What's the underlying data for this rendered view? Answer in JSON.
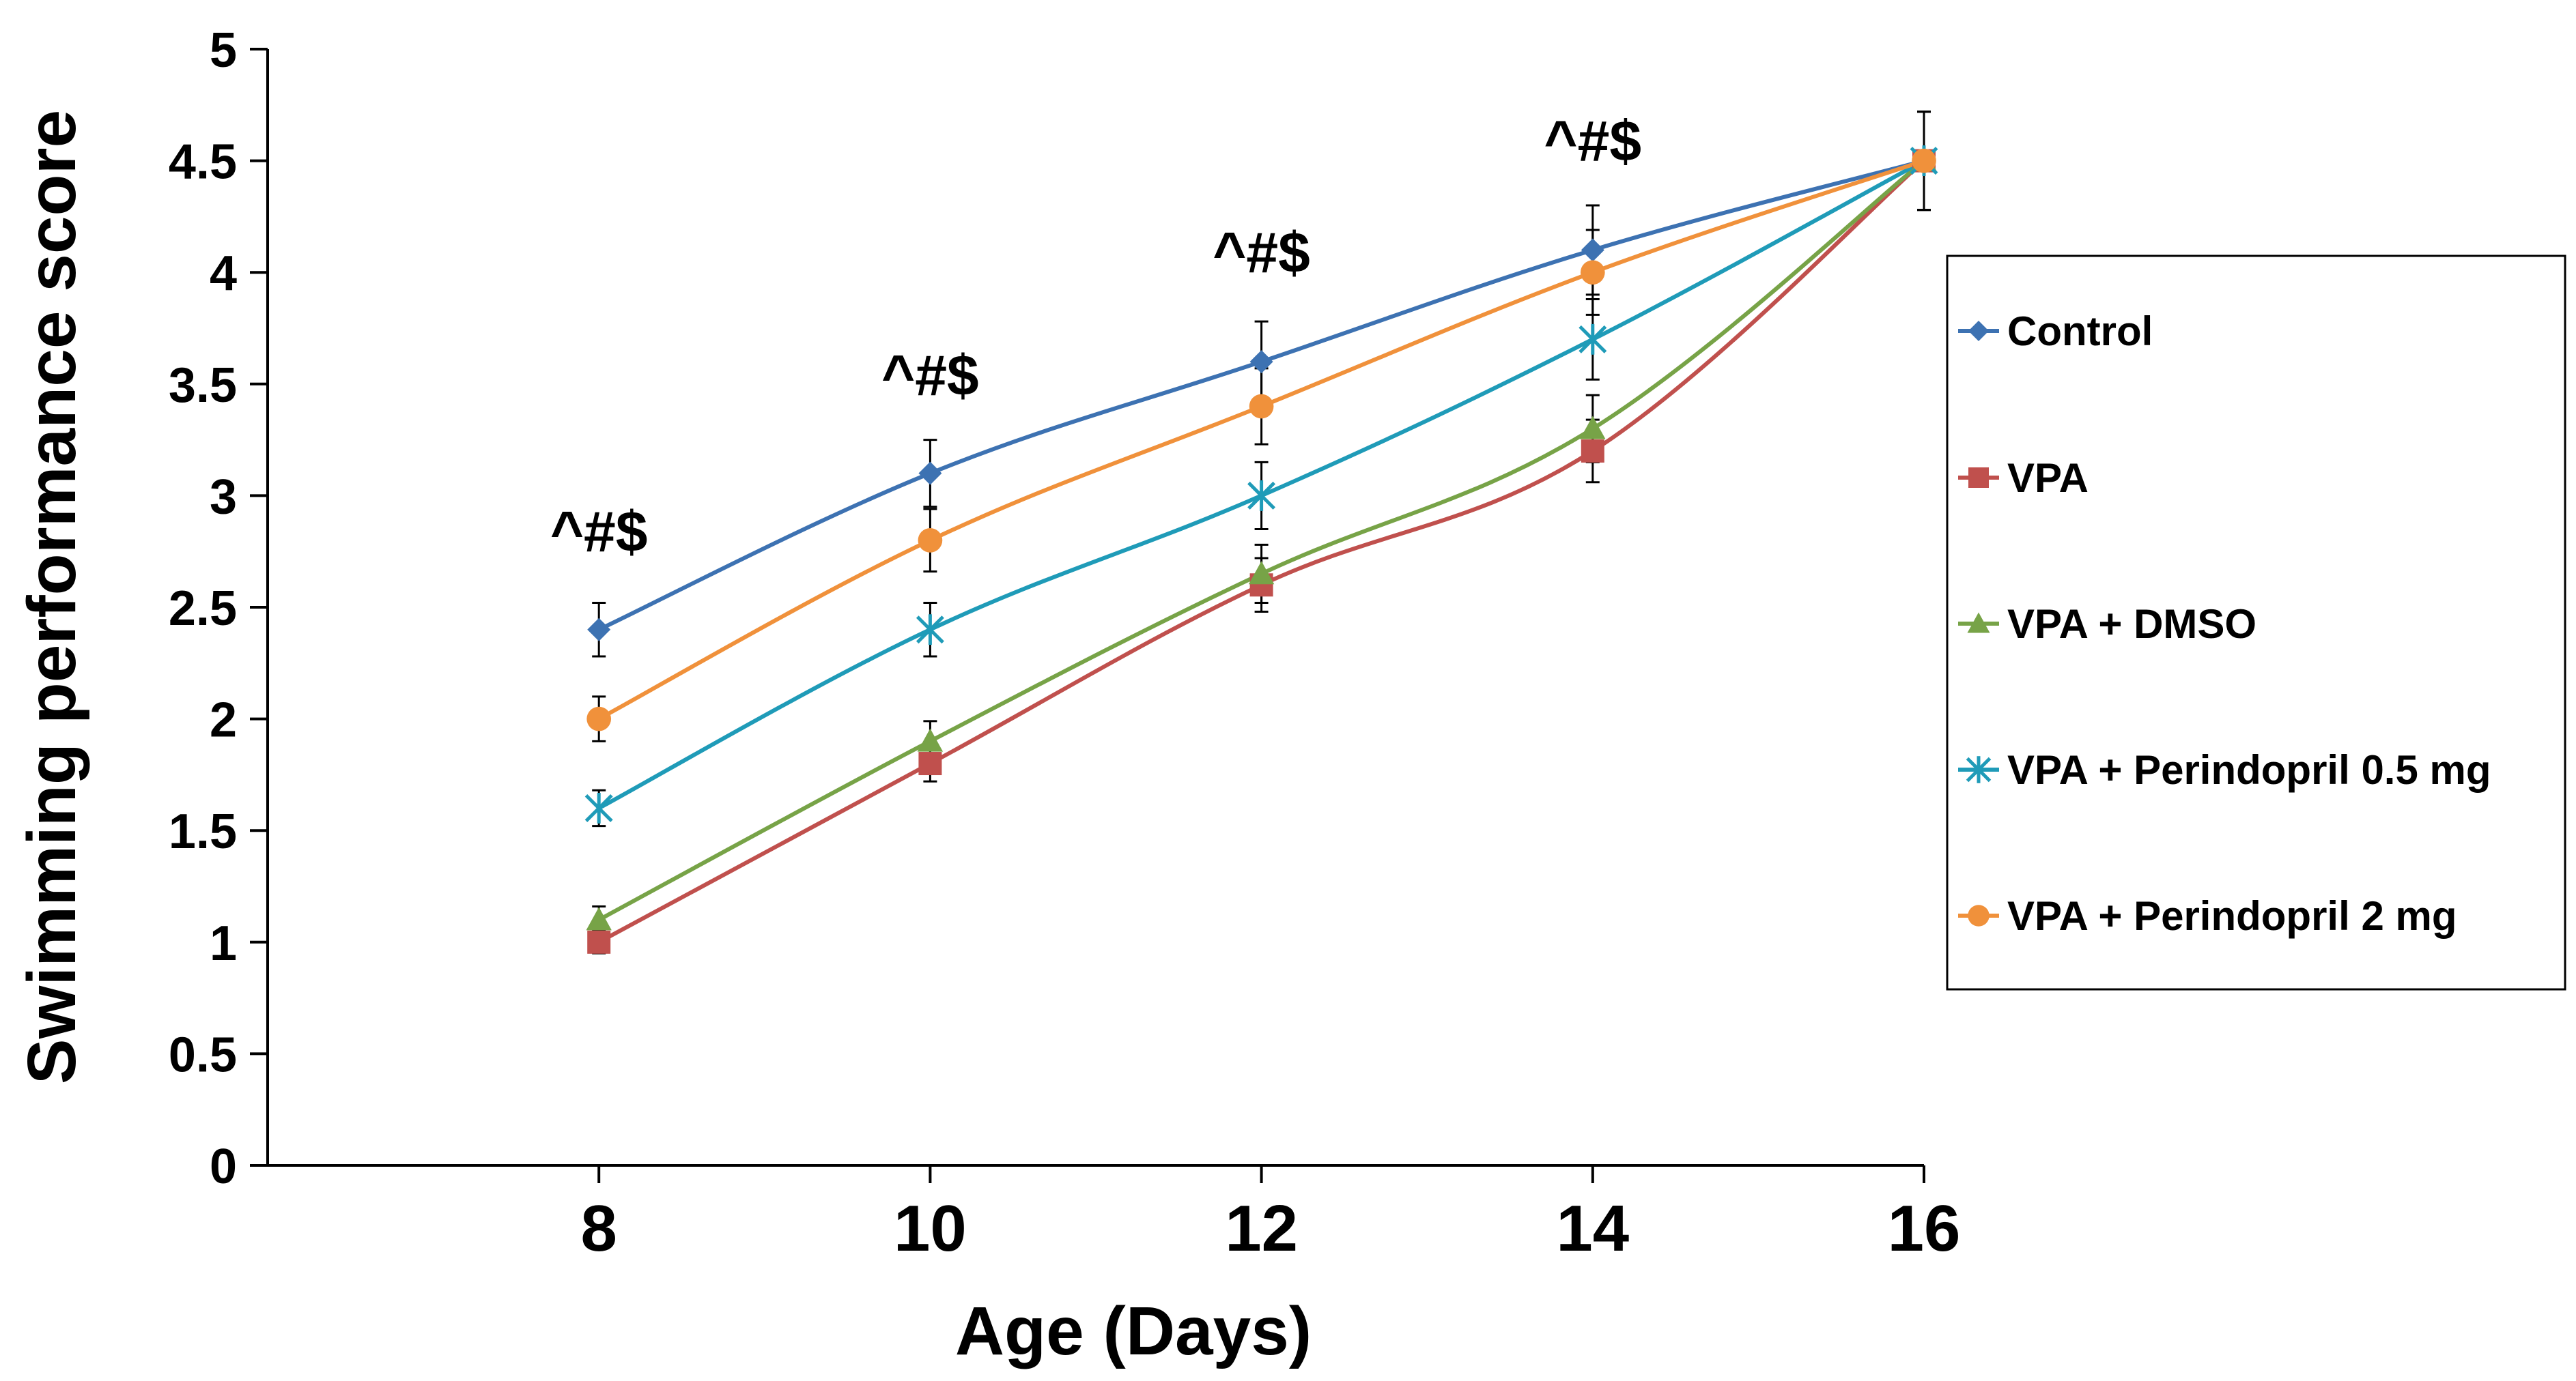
{
  "chart_data": {
    "type": "line",
    "xlabel": "Age (Days)",
    "ylabel": "Swimming performance score",
    "x": [
      8,
      10,
      12,
      14,
      16
    ],
    "xlim": [
      6,
      16
    ],
    "ylim": [
      0,
      5
    ],
    "yticks": [
      0,
      0.5,
      1,
      1.5,
      2,
      2.5,
      3,
      3.5,
      4,
      4.5,
      5
    ],
    "yticks_labels": [
      "0",
      "0.5",
      "1",
      "1.5",
      "2",
      "2.5",
      "3",
      "3.5",
      "4",
      "4.5",
      "5"
    ],
    "xticks_labels": [
      "8",
      "10",
      "12",
      "14",
      "16"
    ],
    "grid": false,
    "legend_position": "right",
    "series": [
      {
        "name": "Control",
        "color": "#3d72b2",
        "marker": "diamond",
        "values": [
          2.4,
          3.1,
          3.6,
          4.1,
          4.5
        ],
        "errors": [
          0.12,
          0.15,
          0.18,
          0.2,
          0.22
        ]
      },
      {
        "name": "VPA",
        "color": "#c0504d",
        "marker": "square",
        "values": [
          1.0,
          1.8,
          2.6,
          3.2,
          4.5
        ],
        "errors": [
          0.05,
          0.08,
          0.12,
          0.14,
          0.22
        ]
      },
      {
        "name": "VPA + DMSO",
        "color": "#77a347",
        "marker": "triangle",
        "values": [
          1.1,
          1.9,
          2.65,
          3.3,
          4.5
        ],
        "errors": [
          0.06,
          0.09,
          0.13,
          0.15,
          0.22
        ]
      },
      {
        "name": "VPA + Perindopril 0.5 mg",
        "color": "#1f9bb8",
        "marker": "star",
        "values": [
          1.6,
          2.4,
          3.0,
          3.7,
          4.5
        ],
        "errors": [
          0.08,
          0.12,
          0.15,
          0.18,
          0.22
        ]
      },
      {
        "name": "VPA + Perindopril 2 mg",
        "color": "#f0913b",
        "marker": "circle",
        "values": [
          2.0,
          2.8,
          3.4,
          4.0,
          4.5
        ],
        "errors": [
          0.1,
          0.14,
          0.17,
          0.19,
          0.22
        ]
      }
    ],
    "annotations": [
      {
        "text": "^#$",
        "x": 8,
        "y": 2.75
      },
      {
        "text": "^#$",
        "x": 10,
        "y": 3.45
      },
      {
        "text": "^#$",
        "x": 12,
        "y": 4.0
      },
      {
        "text": "^#$",
        "x": 14,
        "y": 4.5
      }
    ]
  }
}
